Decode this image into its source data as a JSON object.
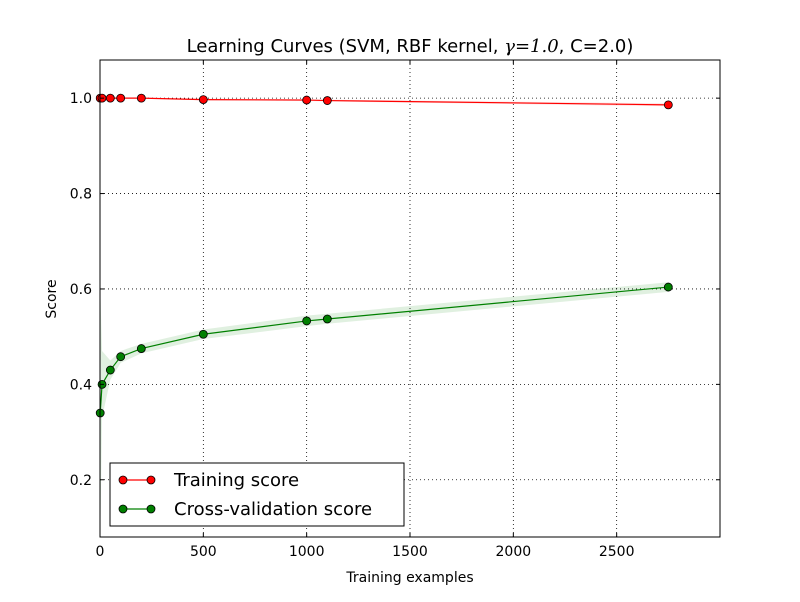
{
  "chart_data": {
    "type": "line",
    "title_prefix": "Learning Curves (SVM, RBF kernel, ",
    "title_math": "γ=1.0",
    "title_suffix": ", C=2.0)",
    "xlabel": "Training examples",
    "ylabel": "Score",
    "xlim": [
      0,
      3000
    ],
    "ylim": [
      0.08,
      1.08
    ],
    "xticks": [
      0,
      500,
      1000,
      1500,
      2000,
      2500
    ],
    "xtick_labels": [
      "0",
      "500",
      "1000",
      "1500",
      "2000",
      "2500"
    ],
    "yticks": [
      0.2,
      0.4,
      0.6,
      0.8,
      1.0
    ],
    "ytick_labels": [
      "0.2",
      "0.4",
      "0.6",
      "0.8",
      "1.0"
    ],
    "grid": true,
    "legend_position": "lower-left",
    "series": [
      {
        "name": "Training score",
        "color": "#ff0000",
        "x": [
          1,
          10,
          50,
          100,
          200,
          500,
          1000,
          1100,
          2750
        ],
        "y": [
          1.0,
          1.0,
          1.0,
          1.0,
          1.0,
          0.997,
          0.996,
          0.995,
          0.986
        ],
        "band_lower": [
          1.0,
          1.0,
          1.0,
          1.0,
          1.0,
          0.995,
          0.994,
          0.993,
          0.983
        ],
        "band_upper": [
          1.0,
          1.0,
          1.0,
          1.0,
          1.0,
          0.999,
          0.998,
          0.997,
          0.989
        ]
      },
      {
        "name": "Cross-validation score",
        "color": "#008000",
        "x": [
          1,
          10,
          50,
          100,
          200,
          500,
          1000,
          1100,
          2750
        ],
        "y": [
          0.34,
          0.4,
          0.43,
          0.458,
          0.475,
          0.505,
          0.533,
          0.537,
          0.604
        ],
        "band_lower": [
          0.08,
          0.33,
          0.41,
          0.445,
          0.465,
          0.495,
          0.522,
          0.527,
          0.594
        ],
        "band_upper": [
          0.6,
          0.47,
          0.45,
          0.47,
          0.485,
          0.515,
          0.544,
          0.548,
          0.614
        ]
      }
    ]
  }
}
